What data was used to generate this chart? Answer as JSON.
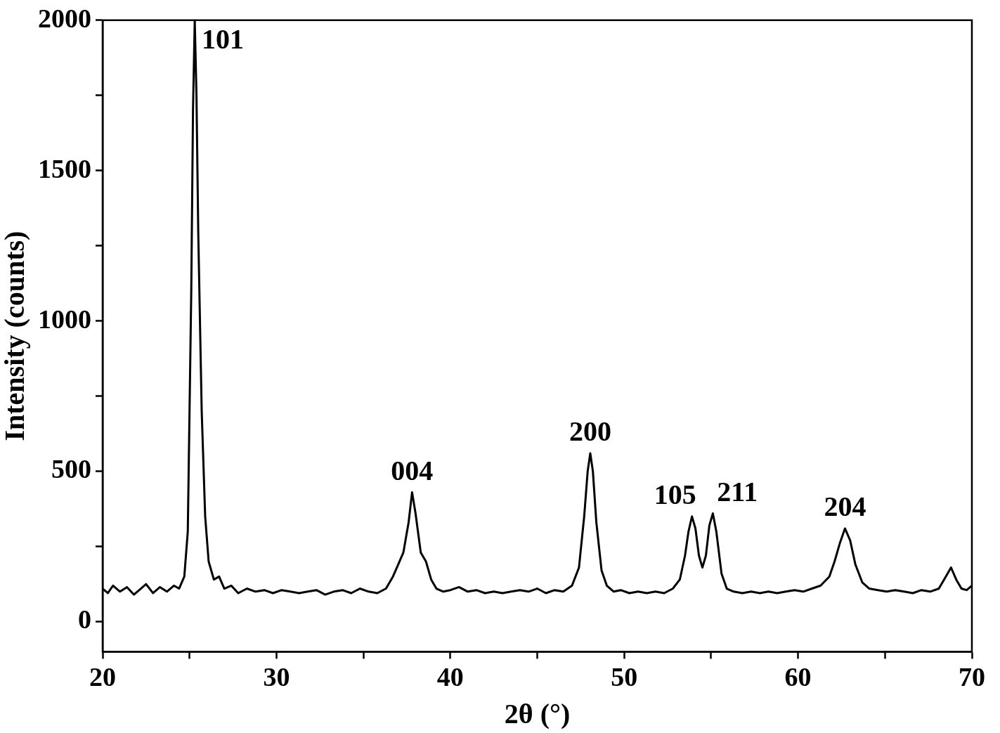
{
  "chart_data": {
    "type": "line",
    "xlabel": "2θ (°)",
    "ylabel": "Intensity (counts)",
    "xlim": [
      20,
      70
    ],
    "ylim": [
      -100,
      2000
    ],
    "xticks": [
      20,
      {
        "value": 25,
        "label": null
      },
      30,
      {
        "value": 35,
        "label": null
      },
      40,
      {
        "value": 45,
        "label": null
      },
      50,
      {
        "value": 55,
        "label": null
      },
      60,
      {
        "value": 65,
        "label": null
      },
      70
    ],
    "yticks": [
      0,
      {
        "value": 250,
        "label": null
      },
      500,
      {
        "value": 750,
        "label": null
      },
      1000,
      {
        "value": 1250,
        "label": null
      },
      1500,
      {
        "value": 1750,
        "label": null
      },
      2000
    ],
    "grid": false,
    "legend": false,
    "marker": "none",
    "line_style": "solid",
    "series": [
      {
        "color": "#000000",
        "x": [
          20,
          20.3,
          20.6,
          21,
          21.4,
          21.8,
          22.2,
          22.5,
          22.9,
          23.3,
          23.7,
          24.1,
          24.4,
          24.7,
          24.9,
          25.1,
          25.2,
          25.3,
          25.4,
          25.5,
          25.7,
          25.9,
          26.1,
          26.4,
          26.7,
          27,
          27.4,
          27.8,
          28.3,
          28.8,
          29.3,
          29.8,
          30.3,
          30.8,
          31.3,
          31.8,
          32.3,
          32.8,
          33.3,
          33.8,
          34.3,
          34.8,
          35.3,
          35.8,
          36.3,
          36.7,
          37.0,
          37.3,
          37.6,
          37.8,
          38.0,
          38.3,
          38.6,
          38.9,
          39.2,
          39.6,
          40.0,
          40.5,
          41,
          41.5,
          42,
          42.5,
          43,
          43.5,
          44,
          44.5,
          45,
          45.5,
          46,
          46.5,
          47,
          47.4,
          47.7,
          47.9,
          48.05,
          48.2,
          48.4,
          48.7,
          49,
          49.4,
          49.8,
          50.3,
          50.8,
          51.3,
          51.8,
          52.3,
          52.8,
          53.2,
          53.5,
          53.7,
          53.9,
          54.1,
          54.3,
          54.5,
          54.7,
          54.9,
          55.1,
          55.3,
          55.6,
          55.9,
          56.3,
          56.8,
          57.3,
          57.8,
          58.3,
          58.8,
          59.3,
          59.8,
          60.3,
          60.8,
          61.3,
          61.8,
          62.1,
          62.4,
          62.7,
          63.0,
          63.3,
          63.7,
          64.1,
          64.6,
          65.1,
          65.6,
          66.1,
          66.6,
          67.1,
          67.6,
          68.1,
          68.5,
          68.8,
          69.1,
          69.4,
          69.7,
          70
        ],
        "values": [
          110,
          95,
          120,
          100,
          115,
          90,
          110,
          125,
          95,
          115,
          100,
          120,
          110,
          150,
          300,
          1100,
          1700,
          2000,
          1750,
          1300,
          700,
          350,
          200,
          140,
          150,
          110,
          120,
          95,
          110,
          100,
          105,
          95,
          105,
          100,
          95,
          100,
          105,
          90,
          100,
          105,
          95,
          110,
          100,
          95,
          110,
          150,
          190,
          230,
          330,
          430,
          360,
          230,
          200,
          140,
          110,
          100,
          105,
          115,
          100,
          105,
          95,
          100,
          95,
          100,
          105,
          100,
          110,
          95,
          105,
          100,
          120,
          180,
          350,
          500,
          560,
          500,
          330,
          170,
          120,
          100,
          105,
          95,
          100,
          95,
          100,
          95,
          110,
          140,
          220,
          300,
          350,
          310,
          220,
          180,
          220,
          320,
          360,
          300,
          160,
          110,
          100,
          95,
          100,
          95,
          100,
          95,
          100,
          105,
          100,
          110,
          120,
          150,
          200,
          260,
          310,
          270,
          190,
          130,
          110,
          105,
          100,
          105,
          100,
          95,
          105,
          100,
          110,
          150,
          180,
          140,
          110,
          105,
          120
        ]
      }
    ],
    "annotations": [
      {
        "text": "101",
        "x": 25.3,
        "y": 2000
      },
      {
        "text": "004",
        "x": 37.8,
        "y": 430
      },
      {
        "text": "200",
        "x": 48.05,
        "y": 560
      },
      {
        "text": "105",
        "x": 53.9,
        "y": 350
      },
      {
        "text": "211",
        "x": 55.1,
        "y": 360
      },
      {
        "text": "204",
        "x": 62.7,
        "y": 310
      }
    ]
  }
}
